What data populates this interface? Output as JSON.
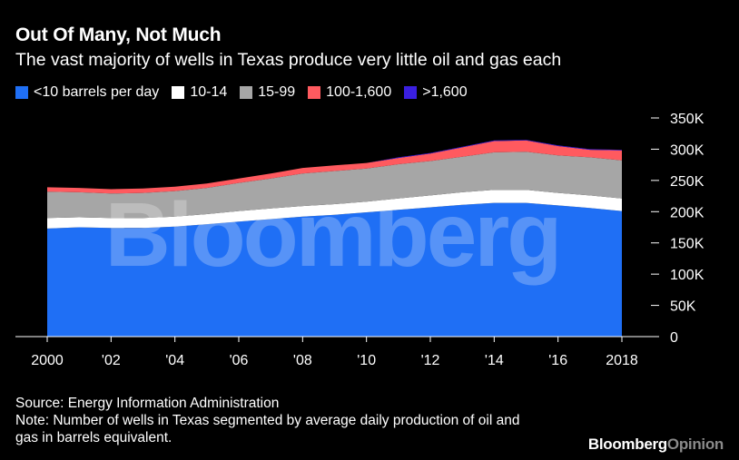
{
  "header": {
    "title": "Out Of Many, Not Much",
    "subtitle": "The vast majority of wells in Texas produce very little oil and gas each"
  },
  "legend": [
    {
      "label": "<10 barrels per day",
      "color": "#1F6FF5"
    },
    {
      "label": "10-14",
      "color": "#FFFFFF"
    },
    {
      "label": "15-99",
      "color": "#A6A6A6"
    },
    {
      "label": "100-1,600",
      "color": "#FF5A5F"
    },
    {
      "label": ">1,600",
      "color": "#3A1FE0"
    }
  ],
  "watermark": "Bloomberg",
  "chart_data": {
    "type": "area",
    "stacked": true,
    "x": [
      2000,
      2001,
      2002,
      2003,
      2004,
      2005,
      2006,
      2007,
      2008,
      2009,
      2010,
      2011,
      2012,
      2013,
      2014,
      2015,
      2016,
      2017,
      2018
    ],
    "x_tick_labels": [
      "2000",
      "'02",
      "'04",
      "'06",
      "'08",
      "'10",
      "'12",
      "'14",
      "'16",
      "2018"
    ],
    "x_tick_values": [
      2000,
      2002,
      2004,
      2006,
      2008,
      2010,
      2012,
      2014,
      2016,
      2018
    ],
    "ylim": [
      0,
      350000
    ],
    "y_ticks": [
      0,
      50000,
      100000,
      150000,
      200000,
      250000,
      300000,
      350000
    ],
    "y_tick_labels": [
      "0",
      "50K",
      "100K",
      "150K",
      "200K",
      "250K",
      "300K",
      "350K"
    ],
    "y_axis_position": "right",
    "series": [
      {
        "name": "<10 barrels per day",
        "color": "#1F6FF5",
        "values": [
          173000,
          175000,
          174000,
          174000,
          176000,
          180000,
          184000,
          188000,
          192000,
          195000,
          199000,
          203000,
          207000,
          211000,
          214000,
          214000,
          210000,
          206000,
          201000
        ]
      },
      {
        "name": "10-14",
        "color": "#FFFFFF",
        "values": [
          17000,
          16000,
          16000,
          16000,
          16000,
          16000,
          17000,
          17000,
          17000,
          17000,
          17000,
          18000,
          19000,
          20000,
          21000,
          21000,
          20000,
          20000,
          20000
        ]
      },
      {
        "name": "15-99",
        "color": "#A6A6A6",
        "values": [
          42000,
          40000,
          39000,
          40000,
          41000,
          42000,
          45000,
          48000,
          52000,
          53000,
          53000,
          55000,
          55000,
          57000,
          60000,
          61000,
          60000,
          61000,
          61000
        ]
      },
      {
        "name": "100-1,600",
        "color": "#FF5A5F",
        "values": [
          7000,
          7000,
          7000,
          7000,
          7000,
          7000,
          7000,
          8000,
          9000,
          9000,
          9000,
          10000,
          12000,
          15000,
          18000,
          18000,
          15000,
          12000,
          16000
        ]
      },
      {
        "name": ">1,600",
        "color": "#3A1FE0",
        "values": [
          0,
          0,
          0,
          0,
          0,
          0,
          0,
          0,
          0,
          0,
          0,
          1000,
          1000,
          1000,
          1000,
          1000,
          1000,
          1000,
          1000
        ]
      }
    ]
  },
  "footer": {
    "source": "Source: Energy Information Administration",
    "note_line1": "Note: Number of wells in Texas segmented by average daily production of oil and",
    "note_line2": "gas in barrels equivalent.",
    "brand_main": "Bloomberg",
    "brand_sub": "Opinion"
  }
}
